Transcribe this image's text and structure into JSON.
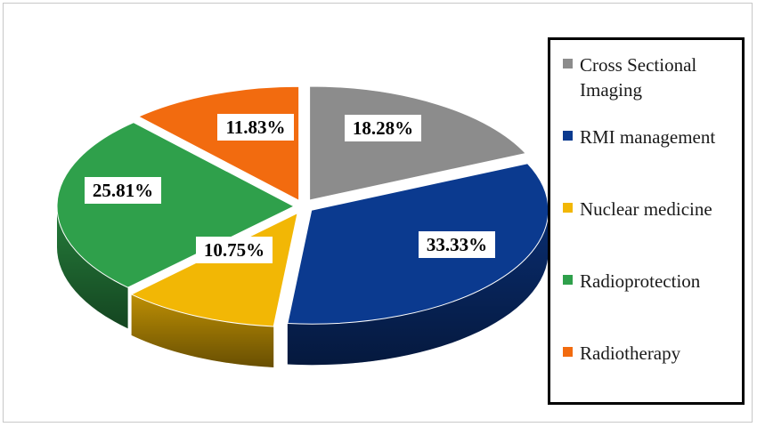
{
  "chart_data": {
    "type": "pie",
    "title": "",
    "slices": [
      {
        "label": "Cross Sectional Imaging",
        "value": 18.28,
        "display": "18.28%",
        "color": "#8C8C8C"
      },
      {
        "label": "RMI management",
        "value": 33.33,
        "display": "33.33%",
        "color": "#0B3A8F"
      },
      {
        "label": "Nuclear medicine",
        "value": 10.75,
        "display": "10.75%",
        "color": "#F2B705"
      },
      {
        "label": "Radioprotection",
        "value": 25.81,
        "display": "25.81%",
        "color": "#2FA04B"
      },
      {
        "label": "Radiotherapy",
        "value": 11.83,
        "display": "11.83%",
        "color": "#F26B0F"
      }
    ],
    "legend_position": "right",
    "style": "3d-exploded"
  }
}
